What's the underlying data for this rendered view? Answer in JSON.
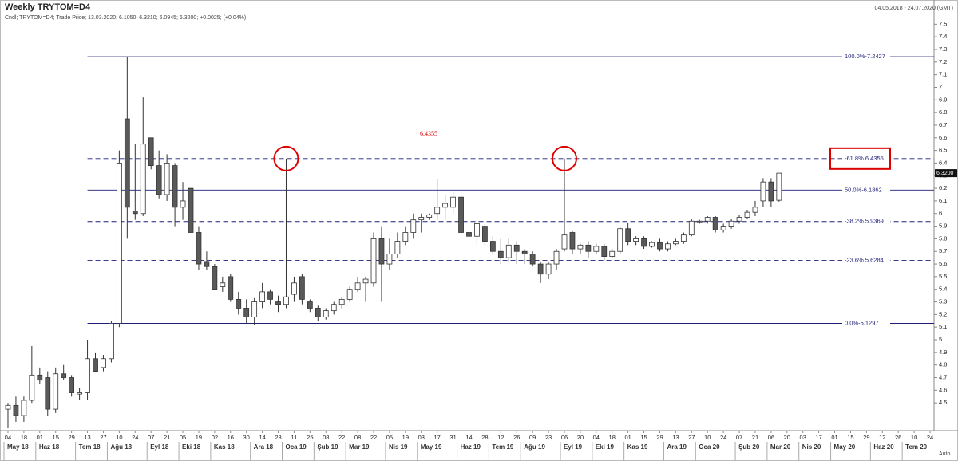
{
  "chart_data": {
    "type": "candlestick",
    "title": "Weekly TRYTOM=D4",
    "subtitle": "Cndl; TRYTOM=D4; Trade Price; 13.03.2020; 6.1050; 6.3210; 6.0945; 6.3200; +0.0025; (+0.04%)",
    "date_range": "04.05.2018 - 24.07.2020 (GMT)",
    "scale_mode": "Auto",
    "annotation": "6,4355",
    "categories": [
      "04",
      null,
      "18",
      null,
      "01",
      null,
      "15",
      null,
      "29",
      null,
      "13",
      null,
      "27",
      null,
      "10",
      null,
      "24",
      null,
      "07",
      null,
      "21",
      null,
      "05",
      null,
      "19",
      null,
      "02",
      null,
      "16",
      null,
      "30",
      null,
      "14",
      null,
      "28",
      null,
      "11",
      null,
      "25",
      null,
      "08",
      null,
      "22",
      null,
      "08",
      null,
      "22",
      null,
      "05",
      null,
      "19",
      null,
      "03",
      null,
      "17",
      null,
      "31",
      null,
      "14",
      null,
      "28",
      null,
      "12",
      null,
      "26",
      null,
      "09",
      null,
      "23",
      null,
      "06",
      null,
      "20",
      null,
      "04",
      null,
      "18",
      null,
      "01",
      null,
      "15",
      null,
      "29",
      null,
      "13",
      null,
      "27",
      null,
      "10",
      null,
      "24",
      null,
      "07",
      null,
      "21",
      null,
      "06",
      null,
      "20",
      null,
      "03",
      null,
      "17",
      null,
      "01",
      null,
      "15",
      null,
      "29",
      null,
      "12",
      null,
      "26",
      null,
      "10",
      null,
      "24"
    ],
    "months": [
      "May 18",
      null,
      null,
      null,
      "Haz 18",
      null,
      null,
      null,
      null,
      "Tem 18",
      null,
      null,
      null,
      "Ağu 18",
      null,
      null,
      null,
      null,
      "Eyl 18",
      null,
      null,
      null,
      "Eki 18",
      null,
      null,
      null,
      "Kas 18",
      null,
      null,
      null,
      null,
      "Ara 18",
      null,
      null,
      null,
      "Oca 19",
      null,
      null,
      null,
      "Şub 19",
      null,
      null,
      null,
      "Mar 19",
      null,
      null,
      null,
      null,
      "Nis 19",
      null,
      null,
      null,
      "May 19",
      null,
      null,
      null,
      null,
      "Haz 19",
      null,
      null,
      null,
      "Tem 19",
      null,
      null,
      null,
      "Ağu 19",
      null,
      null,
      null,
      null,
      "Eyl 19",
      null,
      null,
      null,
      "Eki 19",
      null,
      null,
      null,
      "Kas 19",
      null,
      null,
      null,
      null,
      "Ara 19",
      null,
      null,
      null,
      "Oca 20",
      null,
      null,
      null,
      null,
      "Şub 20",
      null,
      null,
      null,
      "Mar 20",
      null,
      null,
      null,
      "Nis 20",
      null,
      null,
      null,
      "May 20",
      null,
      null,
      null,
      null,
      "Haz 20",
      null,
      null,
      null,
      "Tem 20",
      null,
      null,
      null
    ],
    "open": [
      4.45,
      4.48,
      4.4,
      4.52,
      4.72,
      4.7,
      4.45,
      4.73,
      4.7,
      4.57,
      4.58,
      4.85,
      4.78,
      4.85,
      5.13,
      6.75,
      6.02,
      6.0,
      6.6,
      6.38,
      6.15,
      6.38,
      6.05,
      6.2,
      5.85,
      5.62,
      5.58,
      5.42,
      5.5,
      5.32,
      5.25,
      5.18,
      5.3,
      5.38,
      5.3,
      5.28,
      5.36,
      5.5,
      5.3,
      5.25,
      5.18,
      5.23,
      5.28,
      5.32,
      5.4,
      5.45,
      5.45,
      5.8,
      5.6,
      5.68,
      5.78,
      5.85,
      5.95,
      5.97,
      6.0,
      6.05,
      6.05,
      6.13,
      5.85,
      5.82,
      5.9,
      5.78,
      5.7,
      5.65,
      5.75,
      5.7,
      5.68,
      5.6,
      5.52,
      5.6,
      5.72,
      5.85,
      5.72,
      5.75,
      5.7,
      5.74,
      5.66,
      5.7,
      5.88,
      5.78,
      5.8,
      5.74,
      5.77,
      5.72,
      5.76,
      5.78,
      5.83,
      5.94,
      5.94,
      5.97,
      5.87,
      5.9,
      5.94,
      5.97,
      6.01,
      6.1,
      6.25,
      6.105,
      null,
      null,
      null,
      null,
      null,
      null,
      null,
      null,
      null,
      null,
      null,
      null,
      null,
      null,
      null,
      null,
      null,
      null,
      null
    ],
    "high": [
      4.5,
      4.55,
      4.55,
      4.95,
      4.78,
      4.75,
      4.78,
      4.8,
      4.72,
      4.62,
      5.0,
      4.9,
      4.88,
      5.15,
      6.5,
      7.2427,
      6.55,
      6.92,
      6.6,
      6.5,
      6.47,
      6.4,
      6.25,
      6.2,
      5.9,
      5.7,
      5.6,
      5.5,
      5.52,
      5.38,
      5.32,
      5.33,
      5.45,
      5.4,
      5.35,
      6.4355,
      5.5,
      5.52,
      5.32,
      5.27,
      5.25,
      5.3,
      5.34,
      5.42,
      5.5,
      5.5,
      5.85,
      5.9,
      5.8,
      5.85,
      5.9,
      6.0,
      6.0,
      6.0,
      6.27,
      6.15,
      6.17,
      6.15,
      5.88,
      5.95,
      5.92,
      5.82,
      5.8,
      5.8,
      5.78,
      5.72,
      5.7,
      5.62,
      5.62,
      5.72,
      6.4355,
      5.86,
      5.76,
      5.78,
      5.76,
      5.76,
      5.72,
      5.9,
      5.93,
      5.82,
      5.82,
      5.78,
      5.8,
      5.78,
      5.8,
      5.85,
      5.96,
      5.95,
      5.98,
      5.98,
      5.92,
      5.96,
      5.99,
      6.03,
      6.1,
      6.28,
      6.28,
      6.321,
      null,
      null,
      null,
      null,
      null,
      null,
      null,
      null,
      null,
      null,
      null,
      null,
      null,
      null,
      null,
      null,
      null,
      null,
      null
    ],
    "low": [
      4.3,
      4.35,
      4.35,
      4.5,
      4.65,
      4.4,
      4.42,
      4.68,
      4.55,
      4.52,
      4.52,
      4.75,
      4.75,
      4.82,
      5.1,
      5.8,
      5.95,
      5.98,
      6.35,
      6.12,
      6.1,
      5.9,
      5.95,
      5.85,
      5.55,
      5.55,
      5.4,
      5.38,
      5.3,
      5.2,
      5.13,
      5.12,
      5.25,
      5.28,
      5.22,
      5.25,
      5.3,
      5.28,
      5.22,
      5.15,
      5.16,
      5.2,
      5.25,
      5.3,
      5.38,
      5.3,
      5.42,
      5.3,
      5.55,
      5.65,
      5.75,
      5.8,
      5.85,
      5.95,
      5.95,
      5.95,
      6.0,
      5.85,
      5.7,
      5.75,
      5.75,
      5.68,
      5.6,
      5.62,
      5.6,
      5.6,
      5.58,
      5.45,
      5.48,
      5.55,
      5.7,
      5.68,
      5.68,
      5.65,
      5.68,
      5.63,
      5.65,
      5.68,
      5.75,
      5.75,
      5.72,
      5.73,
      5.7,
      5.7,
      5.75,
      5.76,
      5.82,
      5.92,
      5.92,
      5.85,
      5.85,
      5.88,
      5.92,
      5.96,
      5.98,
      6.05,
      6.05,
      6.0945,
      null,
      null,
      null,
      null,
      null,
      null,
      null,
      null,
      null,
      null,
      null,
      null,
      null,
      null,
      null,
      null,
      null,
      null,
      null
    ],
    "close": [
      4.48,
      4.4,
      4.52,
      4.72,
      4.68,
      4.45,
      4.73,
      4.7,
      4.58,
      4.58,
      4.85,
      4.75,
      4.85,
      5.13,
      6.4,
      6.05,
      6.0,
      6.55,
      6.38,
      6.15,
      6.4,
      6.05,
      6.1,
      5.85,
      5.6,
      5.58,
      5.4,
      5.45,
      5.32,
      5.25,
      5.18,
      5.3,
      5.38,
      5.32,
      5.28,
      5.34,
      5.45,
      5.32,
      5.25,
      5.18,
      5.23,
      5.28,
      5.32,
      5.4,
      5.45,
      5.48,
      5.8,
      5.6,
      5.68,
      5.78,
      5.85,
      5.95,
      5.97,
      5.99,
      6.05,
      6.08,
      6.13,
      5.85,
      5.82,
      5.92,
      5.78,
      5.7,
      5.65,
      5.75,
      5.7,
      5.68,
      5.6,
      5.52,
      5.6,
      5.7,
      5.83,
      5.72,
      5.75,
      5.7,
      5.74,
      5.66,
      5.7,
      5.88,
      5.78,
      5.8,
      5.74,
      5.77,
      5.72,
      5.76,
      5.78,
      5.83,
      5.94,
      5.94,
      5.97,
      5.87,
      5.9,
      5.94,
      5.97,
      6.01,
      6.05,
      6.25,
      6.1,
      6.32,
      null,
      null,
      null,
      null,
      null,
      null,
      null,
      null,
      null,
      null,
      null,
      null,
      null,
      null,
      null,
      null,
      null,
      null,
      null
    ],
    "last_close_label": "6.3200",
    "up_color": "#ffffff",
    "down_color": "#595959",
    "fib_color": "#1f1f7a",
    "fib_levels": [
      {
        "value": 7.2427,
        "label": "100.0%-7.2427",
        "dashed": false
      },
      {
        "value": 6.4355,
        "label": "-61.8%  6.4355",
        "dashed": true
      },
      {
        "value": 6.1862,
        "label": "50.0%-6.1862",
        "dashed": false
      },
      {
        "value": 5.9369,
        "label": "-38.2%  5.9369",
        "dashed": true
      },
      {
        "value": 5.6284,
        "label": "-23.6%  5.6284",
        "dashed": true
      },
      {
        "value": 5.1297,
        "label": "0.0%-5.1297",
        "dashed": false
      }
    ],
    "ylim": [
      4.28,
      7.66
    ],
    "yticks": [
      4.5,
      4.6,
      4.7,
      4.8,
      4.9,
      5,
      5.1,
      5.2,
      5.3,
      5.4,
      5.5,
      5.6,
      5.7,
      5.8,
      5.9,
      6,
      6.1,
      6.2,
      6.3,
      6.4,
      6.5,
      6.6,
      6.7,
      6.8,
      6.9,
      7,
      7.1,
      7.2,
      7.3,
      7.4,
      7.5
    ],
    "grid": false
  }
}
